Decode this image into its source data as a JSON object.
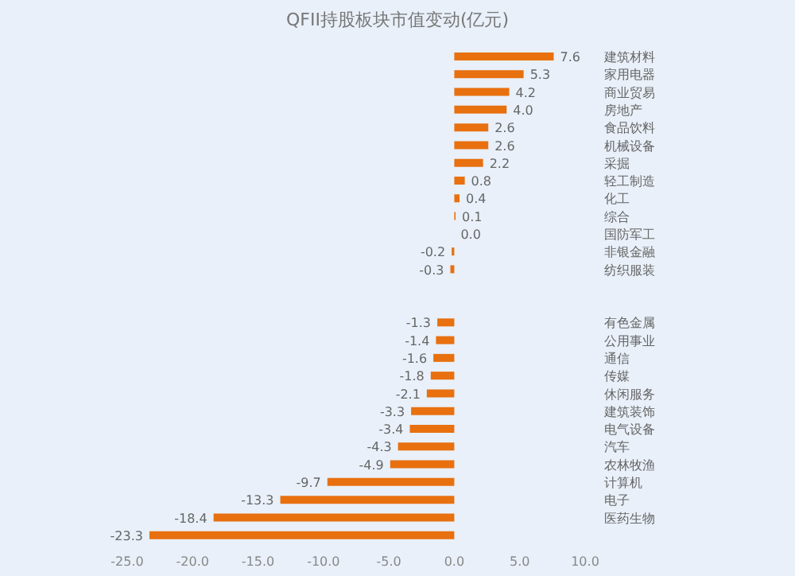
{
  "chart_data": {
    "type": "bar",
    "orientation": "horizontal",
    "title": "QFII持股板块市值变动(亿元)",
    "categories": [
      "建筑材料",
      "家用电器",
      "商业贸易",
      "房地产",
      "食品饮料",
      "机械设备",
      "采掘",
      "轻工制造",
      "化工",
      "综合",
      "国防军工",
      "非银金融",
      "纺织服装",
      null,
      null,
      "有色金属",
      "公用事业",
      "通信",
      "传媒",
      "休闲服务",
      "建筑装饰",
      "电气设备",
      "汽车",
      "农林牧渔",
      "计算机",
      "电子",
      "医药生物",
      null
    ],
    "values": [
      7.6,
      5.3,
      4.2,
      4.0,
      2.6,
      2.6,
      2.2,
      0.8,
      0.4,
      0.1,
      0.0,
      -0.2,
      -0.3,
      null,
      null,
      -1.3,
      -1.4,
      -1.6,
      -1.8,
      -2.1,
      -3.3,
      -3.4,
      -4.3,
      -4.9,
      -9.7,
      -13.3,
      -18.4,
      -23.3
    ],
    "value_labels": [
      "7.6",
      "5.3",
      "4.2",
      "4.0",
      "2.6",
      "2.6",
      "2.2",
      "0.8",
      "0.4",
      "0.1",
      "0.0",
      "-0.2",
      "-0.3",
      null,
      null,
      "-1.3",
      "-1.4",
      "-1.6",
      "-1.8",
      "-2.1",
      "-3.3",
      "-3.4",
      "-4.3",
      "-4.9",
      "-9.7",
      "-13.3",
      "-18.4",
      "-23.3"
    ],
    "color": "#e8700f",
    "xlim": [
      -25,
      10
    ],
    "xticks": [
      {
        "value": -25,
        "label": "-25.0"
      },
      {
        "value": -20,
        "label": "-20.0"
      },
      {
        "value": -15,
        "label": "-15.0"
      },
      {
        "value": -10,
        "label": "-10.0"
      },
      {
        "value": -5,
        "label": "-5.0"
      },
      {
        "value": 0,
        "label": "0.0"
      },
      {
        "value": 5,
        "label": "5.0"
      },
      {
        "value": 10,
        "label": "10.0"
      }
    ],
    "grid": false,
    "legend": false
  }
}
